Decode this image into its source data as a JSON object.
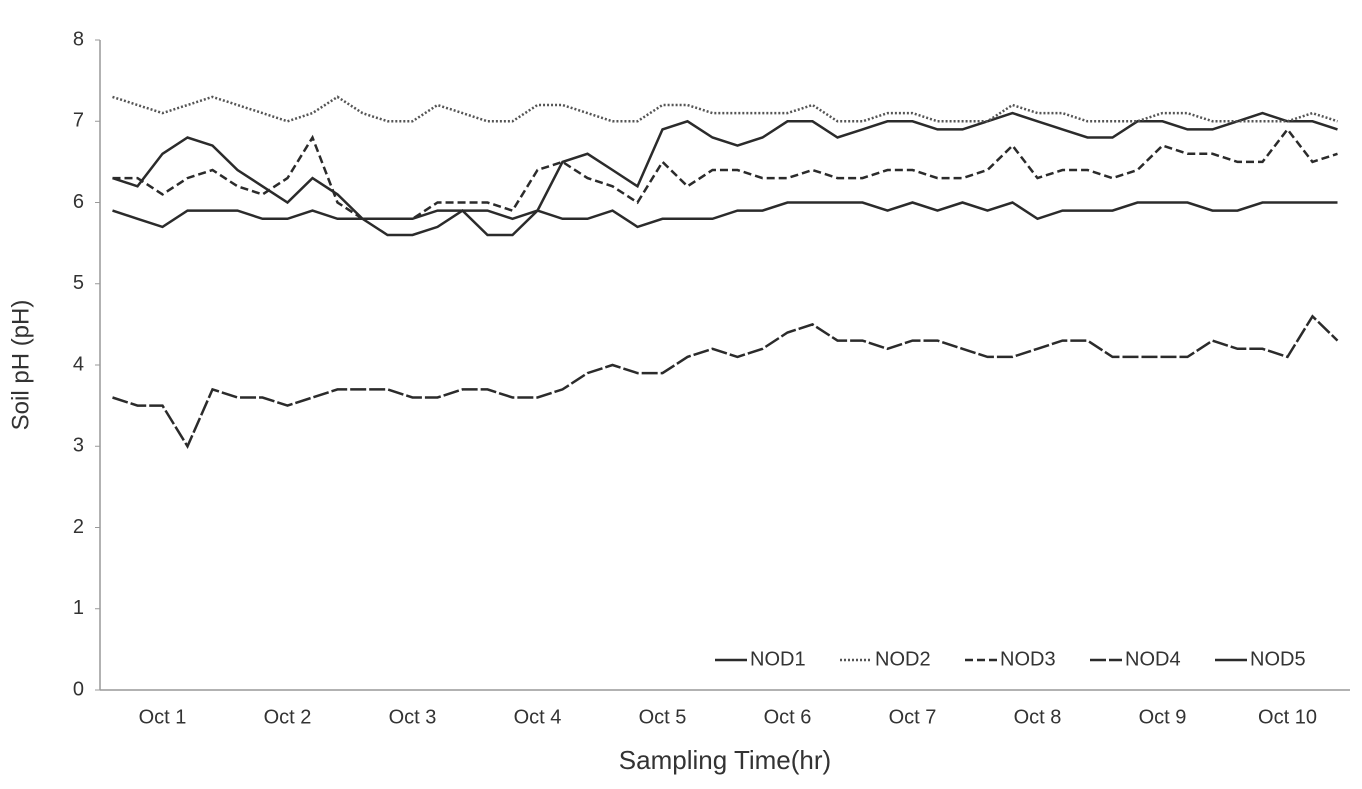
{
  "chart_data": {
    "type": "line",
    "xlabel": "Sampling Time(hr)",
    "ylabel": "Soil pH (pH)",
    "categories": [
      null,
      null,
      "Oct 1",
      null,
      null,
      null,
      null,
      "Oct 2",
      null,
      null,
      null,
      null,
      "Oct 3",
      null,
      null,
      null,
      null,
      "Oct 4",
      null,
      null,
      null,
      null,
      "Oct 5",
      null,
      null,
      null,
      null,
      "Oct 6",
      null,
      null,
      null,
      null,
      "Oct 7",
      null,
      null,
      null,
      null,
      "Oct 8",
      null,
      null,
      null,
      null,
      "Oct 9",
      null,
      null,
      null,
      null,
      "Oct 10",
      null,
      null
    ],
    "series": [
      {
        "name": "NOD1",
        "color": "#2b2b2b",
        "dash": "none",
        "values": [
          6.3,
          6.2,
          6.6,
          6.8,
          6.7,
          6.4,
          6.2,
          6.0,
          6.3,
          6.1,
          5.8,
          5.6,
          5.6,
          5.7,
          5.9,
          5.6,
          5.6,
          5.9,
          6.5,
          6.6,
          6.4,
          6.2,
          6.9,
          7.0,
          6.8,
          6.7,
          6.8,
          7.0,
          7.0,
          6.8,
          6.9,
          7.0,
          7.0,
          6.9,
          6.9,
          7.0,
          7.1,
          7.0,
          6.9,
          6.8,
          6.8,
          7.0,
          7.0,
          6.9,
          6.9,
          7.0,
          7.1,
          7.0,
          7.0,
          6.9
        ]
      },
      {
        "name": "NOD2",
        "color": "#555555",
        "dash": "2 2",
        "values": [
          7.3,
          7.2,
          7.1,
          7.2,
          7.3,
          7.2,
          7.1,
          7.0,
          7.1,
          7.3,
          7.1,
          7.0,
          7.0,
          7.2,
          7.1,
          7.0,
          7.0,
          7.2,
          7.2,
          7.1,
          7.0,
          7.0,
          7.2,
          7.2,
          7.1,
          7.1,
          7.1,
          7.1,
          7.2,
          7.0,
          7.0,
          7.1,
          7.1,
          7.0,
          7.0,
          7.0,
          7.2,
          7.1,
          7.1,
          7.0,
          7.0,
          7.0,
          7.1,
          7.1,
          7.0,
          7.0,
          7.0,
          7.0,
          7.1,
          7.0
        ]
      },
      {
        "name": "NOD3",
        "color": "#2b2b2b",
        "dash": "8 4",
        "values": [
          6.3,
          6.3,
          6.1,
          6.3,
          6.4,
          6.2,
          6.1,
          6.3,
          6.8,
          6.0,
          5.8,
          5.8,
          5.8,
          6.0,
          6.0,
          6.0,
          5.9,
          6.4,
          6.5,
          6.3,
          6.2,
          6.0,
          6.5,
          6.2,
          6.4,
          6.4,
          6.3,
          6.3,
          6.4,
          6.3,
          6.3,
          6.4,
          6.4,
          6.3,
          6.3,
          6.4,
          6.7,
          6.3,
          6.4,
          6.4,
          6.3,
          6.4,
          6.7,
          6.6,
          6.6,
          6.5,
          6.5,
          6.9,
          6.5,
          6.6
        ]
      },
      {
        "name": "NOD4",
        "color": "#2b2b2b",
        "dash": "16 3",
        "values": [
          3.6,
          3.5,
          3.5,
          3.0,
          3.7,
          3.6,
          3.6,
          3.5,
          3.6,
          3.7,
          3.7,
          3.7,
          3.6,
          3.6,
          3.7,
          3.7,
          3.6,
          3.6,
          3.7,
          3.9,
          4.0,
          3.9,
          3.9,
          4.1,
          4.2,
          4.1,
          4.2,
          4.4,
          4.5,
          4.3,
          4.3,
          4.2,
          4.3,
          4.3,
          4.2,
          4.1,
          4.1,
          4.2,
          4.3,
          4.3,
          4.1,
          4.1,
          4.1,
          4.1,
          4.3,
          4.2,
          4.2,
          4.1,
          4.6,
          4.3
        ]
      },
      {
        "name": "NOD5",
        "color": "#2b2b2b",
        "dash": "none",
        "values": [
          5.9,
          5.8,
          5.7,
          5.9,
          5.9,
          5.9,
          5.8,
          5.8,
          5.9,
          5.8,
          5.8,
          5.8,
          5.8,
          5.9,
          5.9,
          5.9,
          5.8,
          5.9,
          5.8,
          5.8,
          5.9,
          5.7,
          5.8,
          5.8,
          5.8,
          5.9,
          5.9,
          6.0,
          6.0,
          6.0,
          6.0,
          5.9,
          6.0,
          5.9,
          6.0,
          5.9,
          6.0,
          5.8,
          5.9,
          5.9,
          5.9,
          6.0,
          6.0,
          6.0,
          5.9,
          5.9,
          6.0,
          6.0,
          6.0,
          6.0
        ]
      }
    ],
    "ylim": [
      0,
      8
    ],
    "yticks": [
      0,
      1,
      2,
      3,
      4,
      5,
      6,
      7,
      8
    ],
    "grid": false,
    "legend": "lower right"
  }
}
